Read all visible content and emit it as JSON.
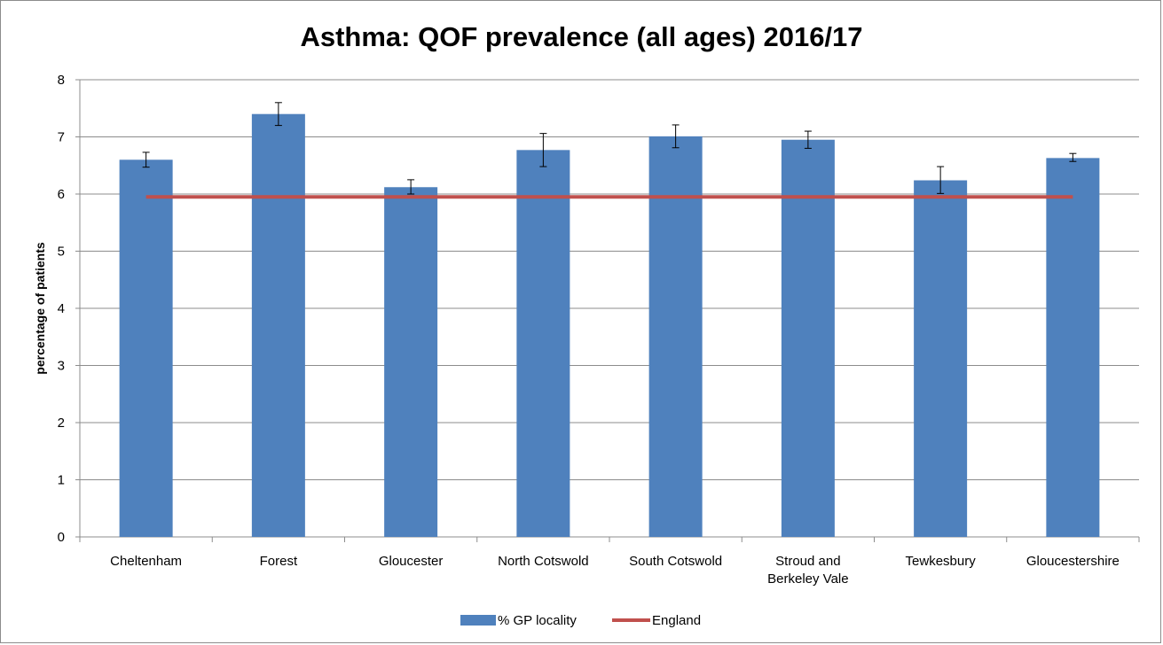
{
  "chart_data": {
    "type": "bar",
    "title": "Asthma: QOF prevalence (all ages) 2016/17",
    "xlabel": "",
    "ylabel": "percentage of patients",
    "ylim": [
      0,
      8
    ],
    "yticks": [
      0,
      1,
      2,
      3,
      4,
      5,
      6,
      7,
      8
    ],
    "grid": true,
    "legend_position": "bottom",
    "categories": [
      [
        "Cheltenham"
      ],
      [
        "Forest"
      ],
      [
        "Gloucester"
      ],
      [
        "North Cotswold"
      ],
      [
        "South Cotswold"
      ],
      [
        "Stroud and",
        "Berkeley Vale"
      ],
      [
        "Tewkesbury"
      ],
      [
        "Gloucestershire"
      ]
    ],
    "series": [
      {
        "name": "% GP locality",
        "type": "bar",
        "color": "#4f81bd",
        "values": [
          6.6,
          7.4,
          6.12,
          6.77,
          7.01,
          6.95,
          6.24,
          6.63
        ],
        "error_low": [
          6.47,
          7.2,
          6.0,
          6.48,
          6.81,
          6.8,
          6.01,
          6.57
        ],
        "error_high": [
          6.73,
          7.6,
          6.25,
          7.06,
          7.21,
          7.1,
          6.48,
          6.71
        ]
      },
      {
        "name": "England",
        "type": "line",
        "color": "#c0504d",
        "value": 5.95
      }
    ]
  }
}
